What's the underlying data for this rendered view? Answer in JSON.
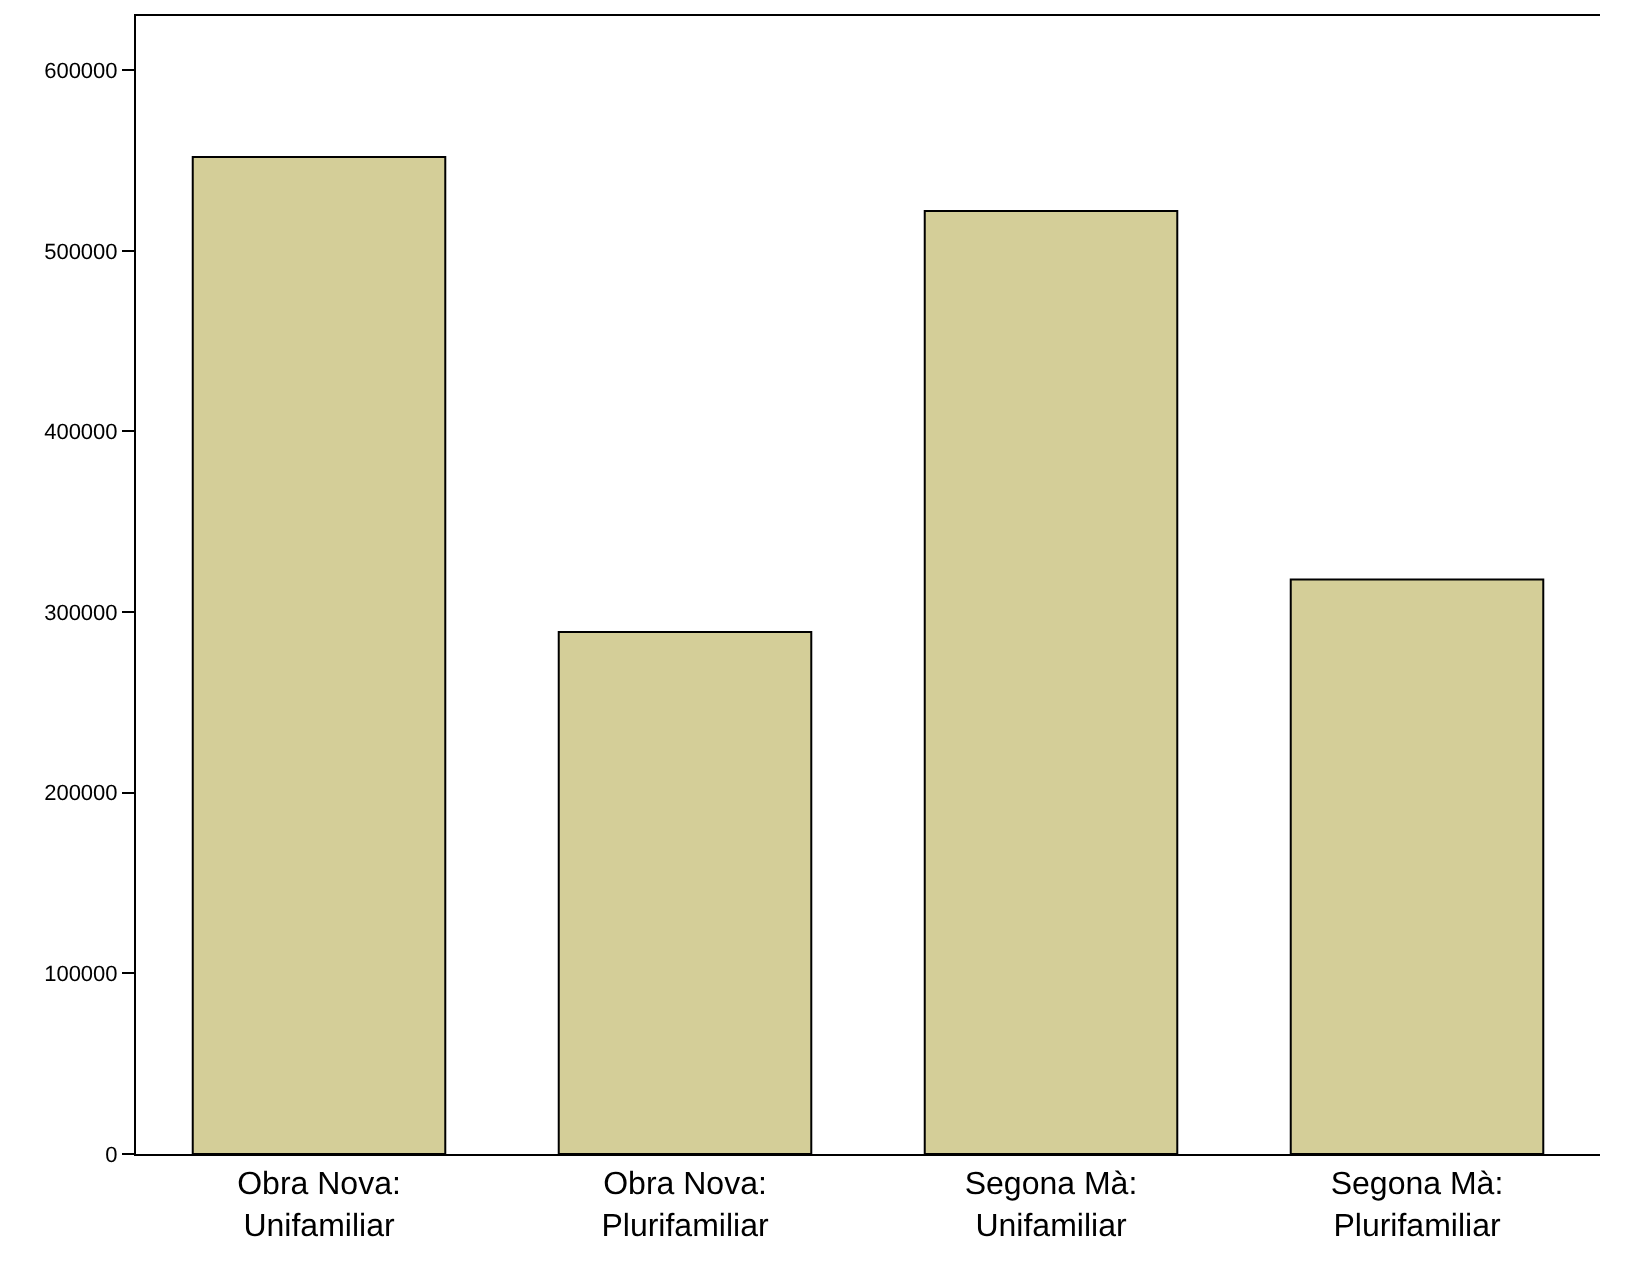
{
  "chart_data": {
    "type": "bar",
    "categories": [
      "Obra Nova:\nUnifamiliar",
      "Obra Nova:\nPlurifamiliar",
      "Segona Mà:\nUnifamiliar",
      "Segona Mà:\nPlurifamiliar"
    ],
    "values": [
      552000,
      289000,
      522000,
      318000
    ],
    "color": "#d4ce98",
    "ylim": [
      0,
      630000
    ],
    "yticks": [
      0,
      100000,
      200000,
      300000,
      400000,
      500000,
      600000
    ],
    "grid": false
  }
}
